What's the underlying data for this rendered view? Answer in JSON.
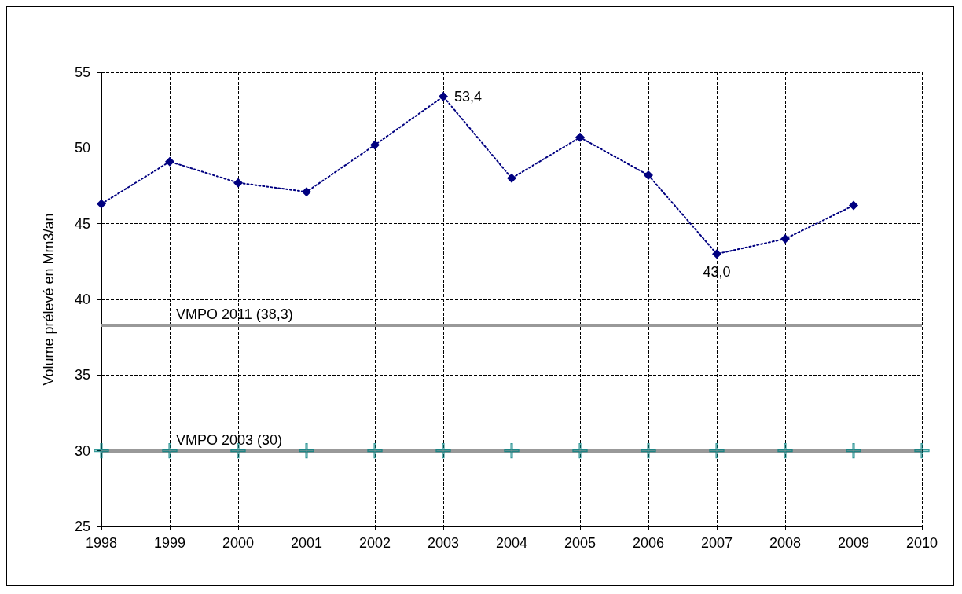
{
  "chart_data": {
    "type": "line",
    "ylabel": "Volume prélevé en Mm3/an",
    "categories": [
      "1998",
      "1999",
      "2000",
      "2001",
      "2002",
      "2003",
      "2004",
      "2005",
      "2006",
      "2007",
      "2008",
      "2009",
      "2010"
    ],
    "series": [
      {
        "color": "#000080",
        "marker": "diamond",
        "line_style": "dotted",
        "values": [
          46.3,
          49.1,
          47.7,
          47.1,
          50.2,
          53.4,
          48.0,
          50.7,
          48.2,
          43.0,
          44.0,
          46.2,
          null
        ],
        "value_labels": [
          null,
          null,
          null,
          null,
          null,
          "53,4",
          null,
          null,
          null,
          "43,0",
          null,
          null,
          null
        ]
      },
      {
        "type": "scatter",
        "color": "#008080",
        "marker": "cross",
        "values": [
          30,
          30,
          30,
          30,
          30,
          30,
          30,
          30,
          30,
          30,
          30,
          30,
          30
        ]
      }
    ],
    "ylim": [
      25,
      55
    ],
    "yticks": [
      25,
      30,
      35,
      40,
      45,
      50,
      55
    ],
    "grid": true,
    "ref_lines": [
      {
        "axis": "y",
        "value": 38.3,
        "label": "VMPO 2011 (38,3)",
        "color": "#999999"
      },
      {
        "axis": "y",
        "value": 30,
        "label": "VMPO 2003 (30)",
        "color": "#999999"
      }
    ]
  }
}
